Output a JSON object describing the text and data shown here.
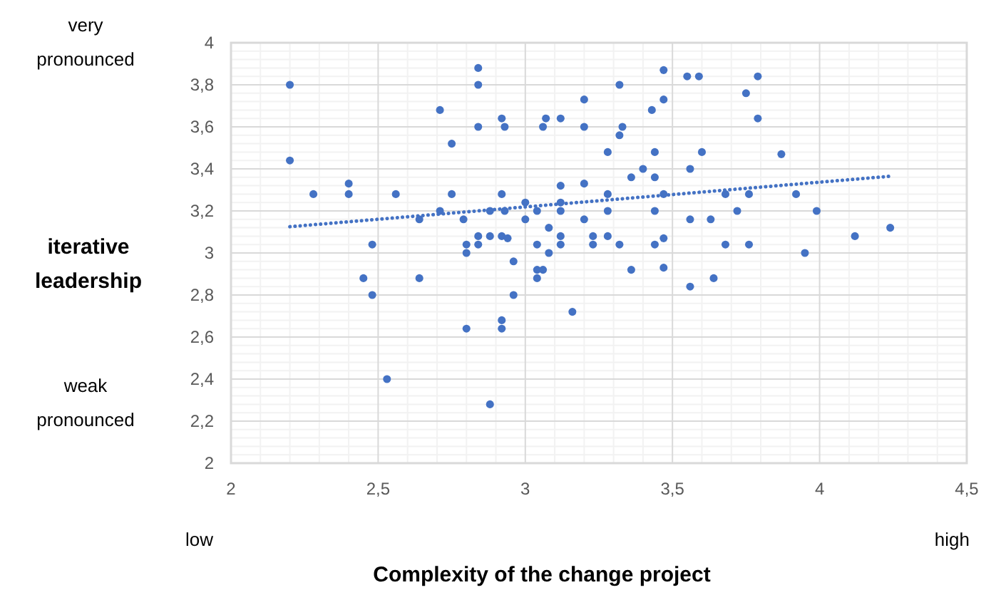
{
  "chart_data": {
    "type": "scatter",
    "xlabel": "Complexity of the change project",
    "ylabel": "iterative leadership",
    "xlim": [
      2,
      4.5
    ],
    "ylim": [
      2,
      4
    ],
    "xticks": [
      2,
      {
        "value": 2.5,
        "label": "2,5"
      },
      3,
      {
        "value": 3.5,
        "label": "3,5"
      },
      4,
      {
        "value": 4.5,
        "label": "4,5"
      }
    ],
    "yticks": [
      2,
      {
        "value": 2.2,
        "label": "2,2"
      },
      {
        "value": 2.4,
        "label": "2,4"
      },
      {
        "value": 2.6,
        "label": "2,6"
      },
      {
        "value": 2.8,
        "label": "2,8"
      },
      3,
      {
        "value": 3.2,
        "label": "3,2"
      },
      {
        "value": 3.4,
        "label": "3,4"
      },
      {
        "value": 3.6,
        "label": "3,6"
      },
      {
        "value": 3.8,
        "label": "3,8"
      },
      4
    ],
    "grid": true,
    "annotations": [
      "very pronounced",
      "weak pronounced",
      "low",
      "high"
    ],
    "series": [
      {
        "color": "#4472c4",
        "marker": "circle",
        "x": [
          2.2,
          2.2,
          2.28,
          2.4,
          2.4,
          2.45,
          2.48,
          2.48,
          2.53,
          2.56,
          2.64,
          2.64,
          2.71,
          2.71,
          2.75,
          2.75,
          2.79,
          2.8,
          2.8,
          2.8,
          2.84,
          2.84,
          2.84,
          2.84,
          2.84,
          2.88,
          2.88,
          2.88,
          2.92,
          2.92,
          2.92,
          2.92,
          2.92,
          2.93,
          2.93,
          2.94,
          2.96,
          2.96,
          3.0,
          3.0,
          3.04,
          3.04,
          3.04,
          3.04,
          3.06,
          3.06,
          3.07,
          3.08,
          3.08,
          3.12,
          3.12,
          3.12,
          3.12,
          3.12,
          3.12,
          3.16,
          3.2,
          3.2,
          3.2,
          3.2,
          3.23,
          3.23,
          3.28,
          3.28,
          3.28,
          3.28,
          3.32,
          3.32,
          3.33,
          3.32,
          3.36,
          3.36,
          3.4,
          3.43,
          3.44,
          3.44,
          3.44,
          3.44,
          3.47,
          3.47,
          3.47,
          3.47,
          3.47,
          3.55,
          3.56,
          3.56,
          3.56,
          3.59,
          3.6,
          3.63,
          3.64,
          3.68,
          3.68,
          3.72,
          3.75,
          3.76,
          3.76,
          3.79,
          3.79,
          3.87,
          3.92,
          3.95,
          3.99,
          4.12,
          4.24
        ],
        "values": [
          3.8,
          3.44,
          3.28,
          3.33,
          3.28,
          2.88,
          3.04,
          2.8,
          2.4,
          3.28,
          3.16,
          2.88,
          3.68,
          3.2,
          3.52,
          3.28,
          3.16,
          3.04,
          3.0,
          2.64,
          3.88,
          3.8,
          3.6,
          3.08,
          3.04,
          3.2,
          3.08,
          2.28,
          3.64,
          3.28,
          3.08,
          2.68,
          2.64,
          3.6,
          3.2,
          3.07,
          2.96,
          2.8,
          3.24,
          3.16,
          3.2,
          3.04,
          2.92,
          2.88,
          3.6,
          2.92,
          3.64,
          3.12,
          3.0,
          3.64,
          3.32,
          3.24,
          3.2,
          3.08,
          3.04,
          2.72,
          3.73,
          3.6,
          3.33,
          3.16,
          3.08,
          3.04,
          3.48,
          3.28,
          3.2,
          3.08,
          3.8,
          3.56,
          3.6,
          3.04,
          3.36,
          2.92,
          3.4,
          3.68,
          3.48,
          3.36,
          3.2,
          3.04,
          3.87,
          3.73,
          3.28,
          3.07,
          2.93,
          3.84,
          3.4,
          3.16,
          2.84,
          3.84,
          3.48,
          3.16,
          2.88,
          3.28,
          3.04,
          3.2,
          3.76,
          3.28,
          3.04,
          3.84,
          3.64,
          3.47,
          3.28,
          3.0,
          3.2,
          3.08,
          3.12
        ]
      },
      {
        "type": "line",
        "color": "#4472c4",
        "line_style": "dotted",
        "x": [
          2.2,
          4.24
        ],
        "values": [
          3.125,
          3.365
        ]
      }
    ]
  }
}
